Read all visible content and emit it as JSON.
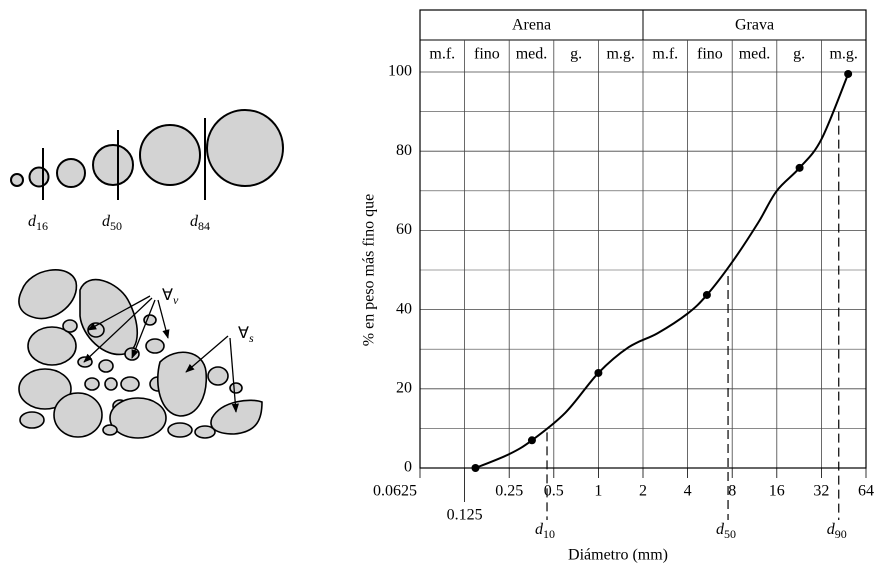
{
  "illustration": {
    "size_labels": [
      {
        "symbol": "d",
        "sub": "16"
      },
      {
        "symbol": "d",
        "sub": "50"
      },
      {
        "symbol": "d",
        "sub": "84"
      }
    ],
    "void_label": {
      "symbol": "∀",
      "sub": "v"
    },
    "solid_label": {
      "symbol": "∀",
      "sub": "s"
    }
  },
  "chart_data": {
    "type": "line",
    "header": {
      "groups": [
        {
          "label": "Arena",
          "classes": [
            "m.f.",
            "fino",
            "med.",
            "g.",
            "m.g."
          ]
        },
        {
          "label": "Grava",
          "classes": [
            "m.f.",
            "fino",
            "med.",
            "g.",
            "m.g."
          ]
        }
      ]
    },
    "x_label": "Diámetro (mm)",
    "y_label": "% en peso más fino que",
    "x_log_base": 2,
    "xlim": [
      0.0625,
      64
    ],
    "xticks": [
      0.0625,
      0.125,
      0.25,
      0.5,
      1,
      2,
      4,
      8,
      16,
      32,
      64
    ],
    "ylim": [
      0,
      100
    ],
    "yticks": [
      0,
      20,
      40,
      60,
      80,
      100
    ],
    "minor_yticks": [
      10,
      30,
      50,
      70,
      90
    ],
    "grid": true,
    "series": [
      {
        "color": "#000000",
        "marker": false,
        "x": [
          0.148,
          0.25,
          0.356,
          0.6,
          1,
          1.6,
          2.5,
          4,
          5.4,
          8,
          12,
          16,
          22.8,
          32,
          48.5
        ],
        "values": [
          0,
          3.5,
          7,
          14,
          24,
          30.5,
          34,
          39,
          43.7,
          52,
          62,
          70,
          75.8,
          83,
          99.5
        ]
      },
      {
        "color": "#000000",
        "marker": true,
        "x": [
          0.148,
          0.356,
          1,
          5.4,
          22.8,
          48.5
        ],
        "values": [
          0,
          7,
          24,
          43.7,
          75.8,
          99.5
        ]
      }
    ],
    "ref_lines": [
      {
        "x": 0.45,
        "y": 9,
        "symbol": "d",
        "sub": "10"
      },
      {
        "x": 7.5,
        "y": 48.5,
        "symbol": "d",
        "sub": "50"
      },
      {
        "x": 41.9,
        "y": 90,
        "symbol": "d",
        "sub": "90"
      }
    ]
  }
}
